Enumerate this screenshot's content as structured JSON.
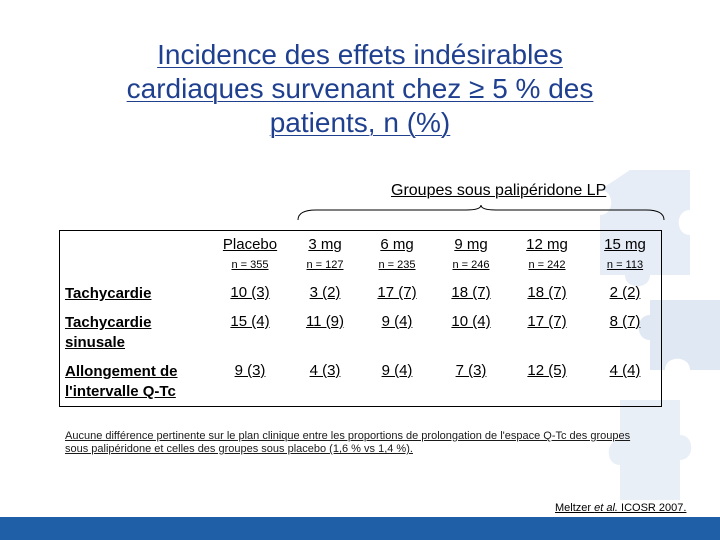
{
  "title_lines": [
    "Incidence des effets indésirables",
    "cardiaques survenant chez ≥ 5 % des",
    "patients, n (%)"
  ],
  "group_label": "Groupes sous palipéridone LP",
  "columns": [
    {
      "dose": "Placebo",
      "n": "n = 355"
    },
    {
      "dose": "3 mg",
      "n": "n = 127"
    },
    {
      "dose": "6 mg",
      "n": "n = 235"
    },
    {
      "dose": "9 mg",
      "n": "n = 246"
    },
    {
      "dose": "12 mg",
      "n": "n = 242"
    },
    {
      "dose": "15 mg",
      "n": "n = 113"
    }
  ],
  "rows": [
    {
      "label": "Tachycardie",
      "values": [
        "10 (3)",
        "3 (2)",
        "17 (7)",
        "18 (7)",
        "18 (7)",
        "2 (2)"
      ]
    },
    {
      "label": "Tachycardie sinusale",
      "values": [
        "15 (4)",
        "11 (9)",
        "9 (4)",
        "10 (4)",
        "17 (7)",
        "8 (7)"
      ]
    },
    {
      "label": "Allongement de l'intervalle Q-Tc",
      "values": [
        "9 (3)",
        "4 (3)",
        "9 (4)",
        "7 (3)",
        "12 (5)",
        "4 (4)"
      ]
    }
  ],
  "footnote": "Aucune différence pertinente sur le plan clinique entre les proportions de prolongation de l'espace Q-Tc des groupes sous palipéridone et celles des groupes sous placebo (1,6 % vs 1,4 %).",
  "citation": {
    "authors": "Meltzer ",
    "etal": "et al.",
    "source": " ICOSR 2007."
  },
  "colors": {
    "title": "#1f3f8f",
    "bar": "#1f5fa8",
    "puzzle": "#dfe8f3"
  }
}
